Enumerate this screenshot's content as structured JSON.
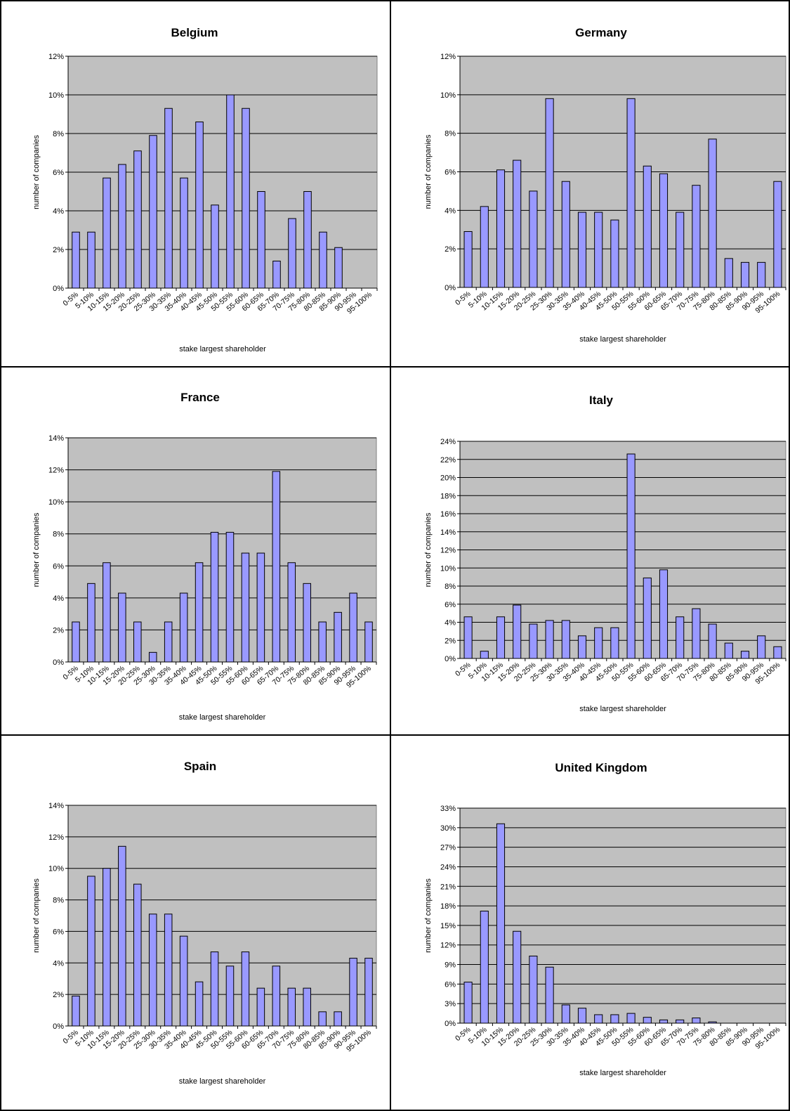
{
  "chart_data": [
    {
      "type": "bar",
      "title": "Belgium",
      "xlabel": "stake largest shareholder",
      "ylabel": "number of companies",
      "categories": [
        "0-5%",
        "5-10%",
        "10-15%",
        "15-20%",
        "20-25%",
        "25-30%",
        "30-35%",
        "35-40%",
        "40-45%",
        "45-50%",
        "50-55%",
        "55-60%",
        "60-65%",
        "65-70%",
        "70-75%",
        "75-80%",
        "80-85%",
        "85-90%",
        "90-95%",
        "95-100%"
      ],
      "values": [
        2.9,
        2.9,
        5.7,
        6.4,
        7.1,
        7.9,
        9.3,
        5.7,
        8.6,
        4.3,
        10.0,
        9.3,
        5.0,
        1.4,
        3.6,
        5.0,
        2.9,
        2.1,
        0,
        0
      ],
      "yticks": [
        "0%",
        "2%",
        "4%",
        "6%",
        "8%",
        "10%",
        "12%"
      ],
      "ylim": [
        0,
        12
      ],
      "grid": true,
      "bar_color": "#9999ff",
      "plot_bg": "#c0c0c0"
    },
    {
      "type": "bar",
      "title": "Germany",
      "xlabel": "stake largest shareholder",
      "ylabel": "number of companies",
      "categories": [
        "0-5%",
        "5-10%",
        "10-15%",
        "15-20%",
        "20-25%",
        "25-30%",
        "30-35%",
        "35-40%",
        "40-45%",
        "45-50%",
        "50-55%",
        "55-60%",
        "60-65%",
        "65-70%",
        "70-75%",
        "75-80%",
        "80-85%",
        "85-90%",
        "90-95%",
        "95-100%"
      ],
      "values": [
        2.9,
        4.2,
        6.1,
        6.6,
        5.0,
        9.8,
        5.5,
        3.9,
        3.9,
        3.5,
        9.8,
        6.3,
        5.9,
        3.9,
        5.3,
        7.7,
        1.5,
        1.3,
        1.3,
        5.5
      ],
      "yticks": [
        "0%",
        "2%",
        "4%",
        "6%",
        "8%",
        "10%",
        "12%"
      ],
      "ylim": [
        0,
        12
      ],
      "grid": true,
      "bar_color": "#9999ff",
      "plot_bg": "#c0c0c0"
    },
    {
      "type": "bar",
      "title": "France",
      "xlabel": "stake largest shareholder",
      "ylabel": "number of companies",
      "categories": [
        "0-5%",
        "5-10%",
        "10-15%",
        "15-20%",
        "20-25%",
        "25-30%",
        "30-35%",
        "35-40%",
        "40-45%",
        "45-50%",
        "50-55%",
        "55-60%",
        "60-65%",
        "65-70%",
        "70-75%",
        "75-80%",
        "80-85%",
        "85-90%",
        "90-95%",
        "95-100%"
      ],
      "values": [
        2.5,
        4.9,
        6.2,
        4.3,
        2.5,
        0.6,
        2.5,
        4.3,
        6.2,
        8.1,
        8.1,
        6.8,
        6.8,
        11.9,
        6.2,
        4.9,
        2.5,
        3.1,
        4.3,
        2.5
      ],
      "yticks": [
        "0%",
        "2%",
        "4%",
        "6%",
        "8%",
        "10%",
        "12%",
        "14%"
      ],
      "ylim": [
        0,
        14
      ],
      "grid": true,
      "bar_color": "#9999ff",
      "plot_bg": "#c0c0c0"
    },
    {
      "type": "bar",
      "title": "Italy",
      "xlabel": "stake largest shareholder",
      "ylabel": "number of companies",
      "categories": [
        "0-5%",
        "5-10%",
        "10-15%",
        "15-20%",
        "20-25%",
        "25-30%",
        "30-35%",
        "35-40%",
        "40-45%",
        "45-50%",
        "50-55%",
        "55-60%",
        "60-65%",
        "65-70%",
        "70-75%",
        "75-80%",
        "80-85%",
        "85-90%",
        "90-95%",
        "95-100%"
      ],
      "values": [
        4.6,
        0.8,
        4.6,
        5.9,
        3.8,
        4.2,
        4.2,
        2.5,
        3.4,
        3.4,
        22.6,
        8.9,
        9.8,
        4.6,
        5.5,
        3.8,
        1.7,
        0.8,
        2.5,
        1.3
      ],
      "yticks": [
        "0%",
        "2%",
        "4%",
        "6%",
        "8%",
        "10%",
        "12%",
        "14%",
        "16%",
        "18%",
        "20%",
        "22%",
        "24%"
      ],
      "ylim": [
        0,
        24
      ],
      "grid": true,
      "bar_color": "#9999ff",
      "plot_bg": "#c0c0c0"
    },
    {
      "type": "bar",
      "title": "Spain",
      "xlabel": "stake largest shareholder",
      "ylabel": "number of companies",
      "categories": [
        "0-5%",
        "5-10%",
        "10-15%",
        "15-20%",
        "20-25%",
        "25-30%",
        "30-35%",
        "35-40%",
        "40-45%",
        "45-50%",
        "50-55%",
        "55-60%",
        "60-65%",
        "65-70%",
        "70-75%",
        "75-80%",
        "80-85%",
        "85-90%",
        "90-95%",
        "95-100%"
      ],
      "values": [
        1.9,
        9.5,
        10.0,
        11.4,
        9.0,
        7.1,
        7.1,
        5.7,
        2.8,
        4.7,
        3.8,
        4.7,
        2.4,
        3.8,
        2.4,
        2.4,
        0.9,
        0.9,
        4.3,
        4.3
      ],
      "yticks": [
        "0%",
        "2%",
        "4%",
        "6%",
        "8%",
        "10%",
        "12%",
        "14%"
      ],
      "ylim": [
        0,
        14
      ],
      "grid": true,
      "bar_color": "#9999ff",
      "plot_bg": "#c0c0c0"
    },
    {
      "type": "bar",
      "title": "United Kingdom",
      "xlabel": "stake largest shareholder",
      "ylabel": "number of companies",
      "categories": [
        "0-5%",
        "5-10%",
        "10-15%",
        "15-20%",
        "20-25%",
        "25-30%",
        "30-35%",
        "35-40%",
        "40-45%",
        "45-50%",
        "50-55%",
        "55-60%",
        "60-65%",
        "65-70%",
        "70-75%",
        "75-80%",
        "80-85%",
        "85-90%",
        "90-95%",
        "95-100%"
      ],
      "values": [
        6.3,
        17.2,
        30.6,
        14.1,
        10.3,
        8.6,
        2.8,
        2.3,
        1.3,
        1.3,
        1.5,
        0.9,
        0.5,
        0.5,
        0.8,
        0.2,
        0,
        0,
        0,
        0
      ],
      "yticks": [
        "0%",
        "3%",
        "6%",
        "9%",
        "12%",
        "15%",
        "18%",
        "21%",
        "24%",
        "27%",
        "30%",
        "33%"
      ],
      "ylim": [
        0,
        33
      ],
      "grid": true,
      "bar_color": "#9999ff",
      "plot_bg": "#c0c0c0"
    }
  ]
}
